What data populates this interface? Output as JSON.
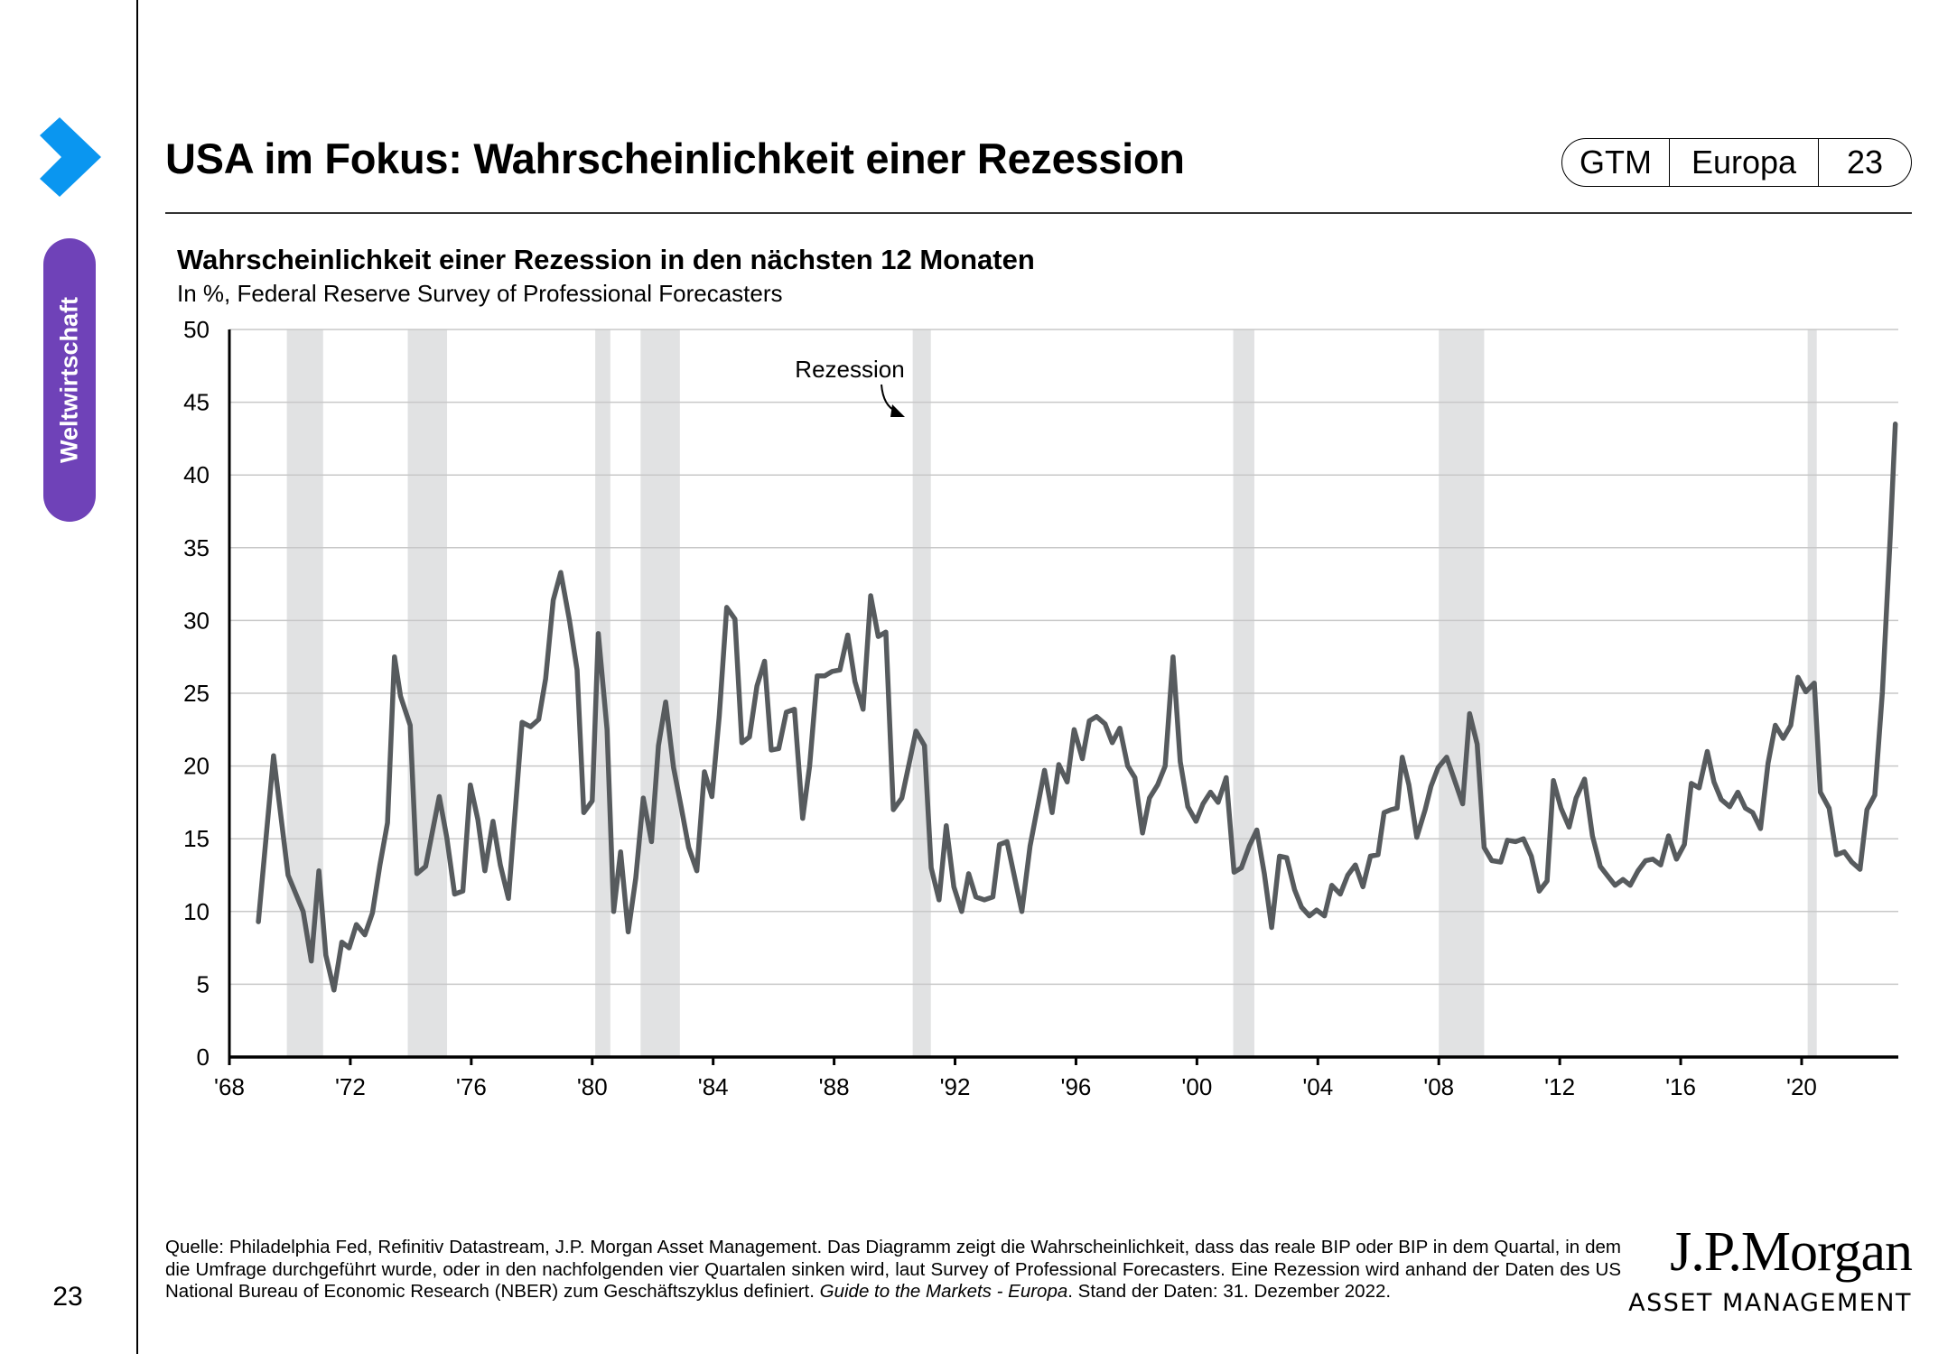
{
  "sidebar": {
    "section_label": "Weltwirtschaft",
    "page_number": "23",
    "brand_color": "#0a96f0",
    "section_color": "#6f42b8"
  },
  "header": {
    "title": "USA im Fokus: Wahrscheinlichkeit einer Rezession",
    "badge": {
      "guide": "GTM",
      "region": "Europa",
      "page": "23"
    }
  },
  "chart_data": {
    "type": "line",
    "title": "Wahrscheinlichkeit einer Rezession in den nächsten 12 Monaten",
    "subtitle": "In %, Federal Reserve Survey of Professional Forecasters",
    "xlabel": "",
    "ylabel": "",
    "xlim": [
      1968,
      2023.1
    ],
    "ylim": [
      0,
      50
    ],
    "grid": true,
    "line_color": "#575b5e",
    "band_color": "#e1e2e3",
    "x_ticks": [
      1968,
      1972,
      1976,
      1980,
      1984,
      1988,
      1992,
      1996,
      2000,
      2004,
      2008,
      2012,
      2016,
      2020
    ],
    "x_tick_labels": [
      "'68",
      "'72",
      "'76",
      "'80",
      "'84",
      "'88",
      "'92",
      "'96",
      "'00",
      "'04",
      "'08",
      "'12",
      "'16",
      "'20"
    ],
    "y_ticks": [
      0,
      5,
      10,
      15,
      20,
      25,
      30,
      35,
      40,
      45,
      50
    ],
    "y_tick_labels": [
      "0",
      "5",
      "10",
      "15",
      "20",
      "25",
      "30",
      "35",
      "40",
      "45",
      "50"
    ],
    "recessions": [
      [
        1969.9,
        1971.1
      ],
      [
        1973.9,
        1975.2
      ],
      [
        1980.1,
        1980.6
      ],
      [
        1981.6,
        1982.9
      ],
      [
        1990.6,
        1991.2
      ],
      [
        2001.2,
        2001.9
      ],
      [
        2008.0,
        2009.5
      ],
      [
        2020.2,
        2020.5
      ]
    ],
    "annotation": {
      "text": "Rezession",
      "target_year": 1990.6,
      "target_value": 44
    },
    "series": [
      {
        "name": "Wahrscheinlichkeit einer Rezession",
        "x": [
          1968.96,
          1969.46,
          1969.94,
          1970.44,
          1970.71,
          1970.96,
          1971.19,
          1971.46,
          1971.72,
          1971.96,
          1972.2,
          1972.48,
          1972.73,
          1972.98,
          1973.23,
          1973.46,
          1973.66,
          1973.98,
          1974.2,
          1974.49,
          1974.94,
          1975.19,
          1975.45,
          1975.72,
          1975.97,
          1976.22,
          1976.45,
          1976.72,
          1976.96,
          1977.23,
          1977.68,
          1977.96,
          1978.23,
          1978.46,
          1978.71,
          1978.96,
          1979.25,
          1979.5,
          1979.72,
          1980.0,
          1980.2,
          1980.49,
          1980.71,
          1980.94,
          1981.19,
          1981.44,
          1981.69,
          1981.96,
          1982.19,
          1982.43,
          1982.69,
          1982.94,
          1983.19,
          1983.46,
          1983.71,
          1983.96,
          1984.2,
          1984.45,
          1984.72,
          1984.95,
          1985.2,
          1985.45,
          1985.7,
          1985.92,
          1986.17,
          1986.42,
          1986.69,
          1986.96,
          1987.19,
          1987.44,
          1987.69,
          1987.94,
          1988.19,
          1988.45,
          1988.69,
          1988.96,
          1989.21,
          1989.46,
          1989.71,
          1989.96,
          1990.24,
          1990.71,
          1990.99,
          1991.21,
          1991.47,
          1991.71,
          1991.96,
          1992.22,
          1992.45,
          1992.69,
          1992.97,
          1993.25,
          1993.47,
          1993.72,
          1994.21,
          1994.48,
          1994.96,
          1995.21,
          1995.43,
          1995.71,
          1995.94,
          1996.21,
          1996.44,
          1996.68,
          1996.96,
          1997.2,
          1997.45,
          1997.71,
          1997.95,
          1998.2,
          1998.43,
          1998.7,
          1998.95,
          1999.21,
          1999.45,
          1999.7,
          1999.97,
          2000.2,
          2000.45,
          2000.7,
          2000.97,
          2001.23,
          2001.47,
          2001.73,
          2001.98,
          2002.23,
          2002.47,
          2002.73,
          2002.97,
          2003.23,
          2003.46,
          2003.72,
          2003.96,
          2004.22,
          2004.46,
          2004.74,
          2004.99,
          2005.24,
          2005.49,
          2005.74,
          2005.99,
          2006.19,
          2006.42,
          2006.62,
          2006.79,
          2007.01,
          2007.27,
          2007.55,
          2007.74,
          2007.98,
          2008.26,
          2008.79,
          2009.02,
          2009.27,
          2009.5,
          2009.75,
          2010.05,
          2010.27,
          2010.54,
          2010.8,
          2011.06,
          2011.32,
          2011.58,
          2011.79,
          2012.04,
          2012.31,
          2012.54,
          2012.82,
          2013.08,
          2013.34,
          2013.6,
          2013.83,
          2014.09,
          2014.33,
          2014.59,
          2014.84,
          2015.08,
          2015.34,
          2015.6,
          2015.86,
          2016.12,
          2016.35,
          2016.61,
          2016.88,
          2017.1,
          2017.34,
          2017.62,
          2017.89,
          2018.14,
          2018.38,
          2018.64,
          2018.89,
          2019.13,
          2019.39,
          2019.64,
          2019.88,
          2020.14,
          2020.42,
          2020.62,
          2020.91,
          2021.15,
          2021.41,
          2021.66,
          2021.93,
          2022.16,
          2022.42,
          2022.67,
          2022.93,
          2023.1
        ],
        "y": [
          9.3,
          20.7,
          12.5,
          10.0,
          6.6,
          12.8,
          7.0,
          4.6,
          7.9,
          7.5,
          9.1,
          8.4,
          9.9,
          13.2,
          16.1,
          27.5,
          24.8,
          22.8,
          12.6,
          13.1,
          17.9,
          15.1,
          11.2,
          11.4,
          18.7,
          16.3,
          12.8,
          16.2,
          13.2,
          10.9,
          23.0,
          22.7,
          23.2,
          26.0,
          31.4,
          33.3,
          30.0,
          26.6,
          16.8,
          17.6,
          29.1,
          22.5,
          10.0,
          14.1,
          8.6,
          12.3,
          17.8,
          14.8,
          21.4,
          24.4,
          19.9,
          17.2,
          14.4,
          12.8,
          19.6,
          17.9,
          23.4,
          30.9,
          30.1,
          21.6,
          22.0,
          25.5,
          27.2,
          21.1,
          21.2,
          23.7,
          23.9,
          16.4,
          20.0,
          26.2,
          26.2,
          26.5,
          26.6,
          29.0,
          25.8,
          23.9,
          31.7,
          28.9,
          29.2,
          17.0,
          17.8,
          22.4,
          21.4,
          13.0,
          10.8,
          15.9,
          11.7,
          10.0,
          12.6,
          11.0,
          10.8,
          11.0,
          14.6,
          14.8,
          10.0,
          14.5,
          19.7,
          16.8,
          20.1,
          18.9,
          22.5,
          20.5,
          23.1,
          23.4,
          22.9,
          21.6,
          22.6,
          20.0,
          19.2,
          15.4,
          17.8,
          18.7,
          20.0,
          27.5,
          20.3,
          17.2,
          16.2,
          17.4,
          18.2,
          17.5,
          19.2,
          12.7,
          13.0,
          14.5,
          15.6,
          12.6,
          8.9,
          13.8,
          13.7,
          11.5,
          10.3,
          9.7,
          10.1,
          9.7,
          11.8,
          11.2,
          12.5,
          13.2,
          11.7,
          13.8,
          13.9,
          16.8,
          17.0,
          17.1,
          20.6,
          18.7,
          15.1,
          17.0,
          18.6,
          19.9,
          20.6,
          17.4,
          23.6,
          21.5,
          14.4,
          13.5,
          13.4,
          14.9,
          14.8,
          15.0,
          13.8,
          11.4,
          12.1,
          19.0,
          17.1,
          15.8,
          17.8,
          19.1,
          15.2,
          13.1,
          12.4,
          11.8,
          12.2,
          11.8,
          12.8,
          13.5,
          13.6,
          13.2,
          15.2,
          13.6,
          14.6,
          18.8,
          18.5,
          21.0,
          18.9,
          17.7,
          17.2,
          18.2,
          17.1,
          16.8,
          15.7,
          20.2,
          22.8,
          21.9,
          22.8,
          26.1,
          25.1,
          25.7,
          18.2,
          17.1,
          13.9,
          14.1,
          13.4,
          12.9,
          17.0,
          18.0,
          25.1,
          35.8,
          43.5
        ]
      }
    ]
  },
  "footer": {
    "source_text": "Quelle: Philadelphia Fed, Refinitiv Datastream, J.P. Morgan Asset Management. Das Diagramm zeigt die Wahrscheinlichkeit, dass das reale BIP oder BIP in dem Quartal, in dem die Umfrage durchgeführt wurde, oder in den nachfolgenden vier Quartalen sinken wird, laut Survey of Professional Forecasters. Eine Rezession wird anhand der Daten des US National Bureau of Economic Research (NBER) zum Geschäftszyklus definiert. ",
    "guide_name": "Guide to the Markets - Europa",
    "date_text": ". Stand der Daten: 31. Dezember 2022."
  },
  "logo": {
    "brand": "J.P.Morgan",
    "subline": "ASSET MANAGEMENT"
  }
}
